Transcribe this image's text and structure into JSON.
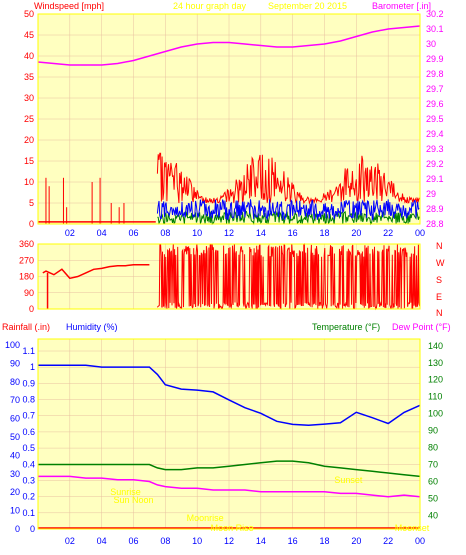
{
  "header": {
    "left_label": "Windspeed [mph]",
    "center_label": "24 hour graph day",
    "date_label": "September 20 2015",
    "right_label": "Barometer [.in]"
  },
  "colors": {
    "plot_bg": "#ffffc0",
    "frame": "#ffff00",
    "grid": "#e8c0a0",
    "axis_left_red": "#ff0000",
    "axis_right_magenta": "#ff00ff",
    "axis_text_blue": "#0000ff",
    "axis_text_green": "#008000",
    "header_yellow": "#ffff00",
    "wind_gust": "#ff0000",
    "wind_avg": "#0000ff",
    "wind_low": "#008000",
    "barometer": "#ff00ff",
    "humidity": "#0000ff",
    "temperature": "#008000",
    "dewpoint": "#ff00ff"
  },
  "middle": {
    "compass": [
      "N",
      "W",
      "S",
      "E",
      "N"
    ]
  },
  "bottom_header": {
    "rainfall": "Rainfall (.in)",
    "humidity": "Humidity (%)",
    "temperature": "Temperature (°F)",
    "dewpoint": "Dew Point (°F)"
  },
  "events": [
    {
      "label": "Sunrise",
      "hour": 5.5
    },
    {
      "label": "Sunset",
      "hour": 19.5
    },
    {
      "label": "Moonrise",
      "hour": 10.5
    },
    {
      "label": "Moonset",
      "hour": 23.5
    },
    {
      "label": "Sun Noon",
      "hour": 6.0
    },
    {
      "label": "Moon Rise",
      "hour": 12.2
    }
  ],
  "chart_data": [
    {
      "type": "line",
      "title": "24 hour graph day",
      "x_ticks": [
        "02",
        "04",
        "06",
        "08",
        "10",
        "12",
        "14",
        "16",
        "18",
        "20",
        "22",
        "00"
      ],
      "y_left": {
        "label": "Windspeed [mph]",
        "ticks": [
          0,
          5,
          10,
          15,
          20,
          25,
          30,
          35,
          40,
          45,
          50
        ],
        "range": [
          0,
          50
        ]
      },
      "y_right": {
        "label": "Barometer [.in]",
        "ticks": [
          "28.8",
          "28.9",
          "29",
          "29.1",
          "29.2",
          "29.3",
          "29.4",
          "29.5",
          "29.6",
          "29.7",
          "29.8",
          "29.9",
          "30",
          "30.1",
          "30.2"
        ],
        "range": [
          28.8,
          30.2
        ]
      },
      "series": [
        {
          "name": "Barometer",
          "unit": "in",
          "x": [
            0,
            1,
            2,
            3,
            4,
            5,
            6,
            7,
            8,
            9,
            10,
            11,
            12,
            13,
            14,
            15,
            16,
            17,
            18,
            19,
            20,
            21,
            22,
            23,
            24
          ],
          "values": [
            29.88,
            29.87,
            29.86,
            29.86,
            29.86,
            29.87,
            29.89,
            29.92,
            29.95,
            29.98,
            30.0,
            30.01,
            30.01,
            30.0,
            29.99,
            29.98,
            29.98,
            29.99,
            30.0,
            30.02,
            30.05,
            30.08,
            30.1,
            30.11,
            30.12
          ]
        },
        {
          "name": "Wind Gust",
          "unit": "mph",
          "x_start": 7.5,
          "x_end": 24,
          "level_range": [
            5,
            17
          ]
        },
        {
          "name": "Wind Avg",
          "unit": "mph",
          "x_start": 7.5,
          "x_end": 24,
          "level_range": [
            1,
            8
          ]
        }
      ]
    },
    {
      "type": "scatter",
      "title": "Wind Direction",
      "y_ticks": [
        0,
        90,
        180,
        270,
        360
      ],
      "series": [
        {
          "name": "Wind Direction",
          "unit": "deg",
          "x": [
            0.3,
            0.5,
            1.0,
            1.5,
            2.0,
            2.5,
            3.0,
            3.5,
            4.0,
            4.5,
            5.0,
            5.5,
            6.0,
            6.5,
            7.0
          ],
          "values": [
            200,
            210,
            190,
            220,
            170,
            180,
            200,
            220,
            225,
            235,
            240,
            240,
            245,
            245,
            245
          ]
        },
        {
          "name": "Wind Direction (active)",
          "x_start": 7.5,
          "x_end": 24,
          "range": [
            0,
            360
          ]
        }
      ]
    },
    {
      "type": "line",
      "title": "Rainfall / Humidity / Temperature / Dew Point",
      "y_left_outer": {
        "label": "Rainfall (.in)",
        "ticks": [
          0,
          0.1,
          0.2,
          0.3,
          0.4,
          0.5,
          0.6,
          0.7,
          0.8,
          0.9,
          1,
          1.1
        ]
      },
      "y_left_inner": {
        "label": "Humidity (%)",
        "ticks": [
          0,
          10,
          20,
          30,
          40,
          50,
          60,
          70,
          80,
          90,
          100
        ]
      },
      "y_right": {
        "label": "Temperature (°F)",
        "ticks": [
          40,
          50,
          60,
          70,
          80,
          90,
          100,
          110,
          120,
          130,
          140
        ]
      },
      "x_ticks": [
        "02",
        "04",
        "06",
        "08",
        "10",
        "12",
        "14",
        "16",
        "18",
        "20",
        "22",
        "00"
      ],
      "series": [
        {
          "name": "Humidity",
          "unit": "%",
          "x": [
            0,
            1,
            2,
            3,
            4,
            5,
            6,
            7,
            7.5,
            8,
            9,
            10,
            11,
            12,
            13,
            14,
            15,
            16,
            17,
            18,
            19,
            20,
            21,
            22,
            23,
            24
          ],
          "values": [
            89,
            89,
            89,
            89,
            88,
            88,
            88,
            88,
            84,
            78,
            76,
            75,
            74,
            70,
            66,
            62,
            58,
            57,
            56,
            57,
            58,
            63,
            60,
            57,
            64,
            67
          ]
        },
        {
          "name": "Temperature",
          "unit": "°F",
          "x": [
            0,
            1,
            2,
            3,
            4,
            5,
            6,
            7,
            7.5,
            8,
            9,
            10,
            11,
            12,
            13,
            14,
            15,
            16,
            17,
            18,
            19,
            20,
            21,
            22,
            23,
            24
          ],
          "values": [
            70,
            70,
            70,
            70,
            70,
            70,
            70,
            70,
            68,
            67,
            67,
            68,
            68,
            69,
            70,
            71,
            72,
            72,
            71,
            69,
            68,
            67,
            66,
            65,
            64,
            63
          ]
        },
        {
          "name": "Dew Point",
          "unit": "°F",
          "x": [
            0,
            1,
            2,
            3,
            4,
            5,
            6,
            7,
            7.5,
            8,
            9,
            10,
            11,
            12,
            13,
            14,
            15,
            16,
            17,
            18,
            19,
            20,
            21,
            22,
            23,
            24
          ],
          "values": [
            63,
            63,
            63,
            62,
            62,
            61,
            61,
            60,
            58,
            57,
            56,
            56,
            55,
            55,
            55,
            54,
            54,
            54,
            54,
            54,
            53,
            53,
            52,
            51,
            52,
            51
          ]
        },
        {
          "name": "Rainfall",
          "unit": "in",
          "x": [
            0,
            24
          ],
          "values": [
            0,
            0
          ]
        }
      ]
    }
  ]
}
